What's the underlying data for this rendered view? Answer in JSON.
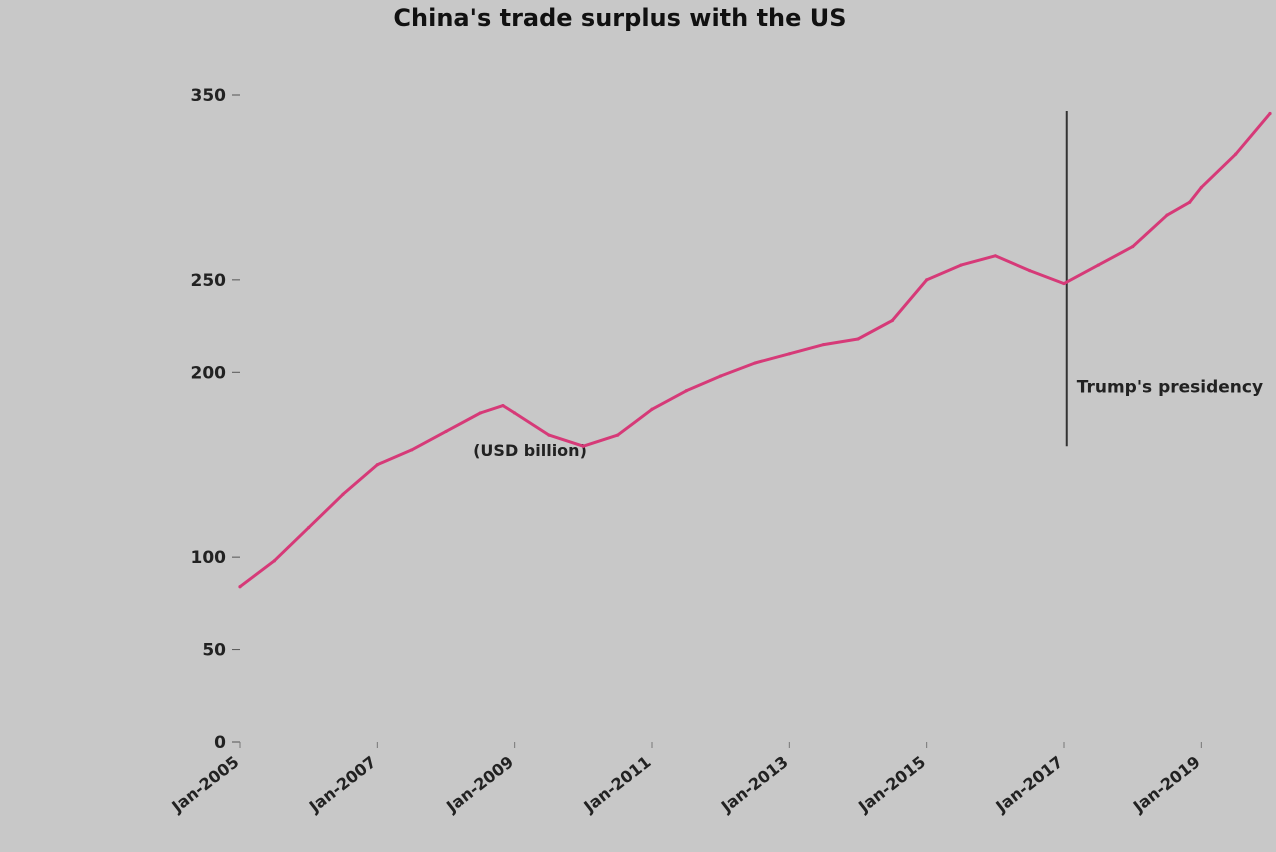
{
  "chart_data": {
    "type": "line",
    "title": "China's trade surplus with the US",
    "ylabel": "(USD billion)",
    "ylim": [
      0,
      350
    ],
    "y_ticks": [
      0,
      50,
      100,
      200,
      250,
      350
    ],
    "x_ticks": [
      "Jan-2005",
      "Jan-2007",
      "Jan-2009",
      "Jan-2011",
      "Jan-2013",
      "Jan-2015",
      "Jan-2017",
      "Jan-2019"
    ],
    "annotations": [
      {
        "text": "Trump's presidency",
        "x": 2017.04
      }
    ],
    "series": [
      {
        "color": "#d63a78",
        "x": [
          2005.0,
          2005.5,
          2006.0,
          2006.5,
          2007.0,
          2007.5,
          2008.0,
          2008.5,
          2008.83,
          2009.0,
          2009.5,
          2010.0,
          2010.5,
          2011.0,
          2011.5,
          2012.0,
          2012.5,
          2013.0,
          2013.5,
          2014.0,
          2014.5,
          2015.0,
          2015.5,
          2016.0,
          2016.5,
          2017.0,
          2017.5,
          2018.0,
          2018.5,
          2018.83,
          2019.0,
          2019.5,
          2020.0
        ],
        "y": [
          84,
          98,
          116,
          134,
          150,
          158,
          168,
          178,
          182,
          178,
          166,
          160,
          166,
          180,
          190,
          198,
          205,
          210,
          215,
          218,
          228,
          250,
          258,
          263,
          255,
          248,
          258,
          268,
          285,
          292,
          300,
          318,
          340
        ]
      }
    ]
  },
  "colors": {
    "background": "#c8c8c8",
    "line": "#d63a78",
    "marker": "#333333"
  }
}
